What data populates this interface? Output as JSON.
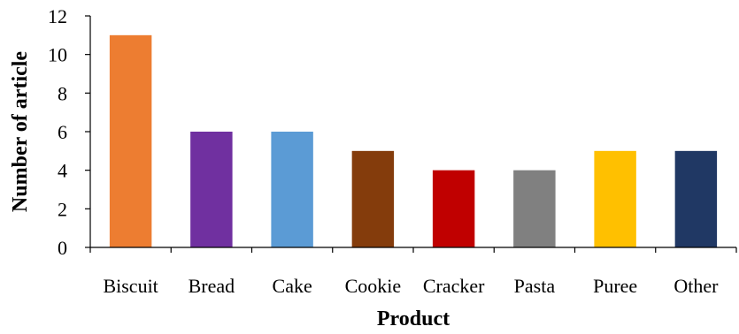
{
  "chart_data": {
    "type": "bar",
    "categories": [
      "Biscuit",
      "Bread",
      "Cake",
      "Cookie",
      "Cracker",
      "Pasta",
      "Puree",
      "Other"
    ],
    "values": [
      11,
      6,
      6,
      5,
      4,
      4,
      5,
      5
    ],
    "colors": [
      "#ED7D31",
      "#7030A0",
      "#5B9BD5",
      "#843C0C",
      "#C00000",
      "#808080",
      "#FFC000",
      "#203864"
    ],
    "title": "",
    "xlabel": "Product",
    "ylabel": "Number of article",
    "ylim": [
      0,
      12
    ],
    "yticks": [
      0,
      2,
      4,
      6,
      8,
      10,
      12
    ],
    "grid": false,
    "legend": "none"
  }
}
